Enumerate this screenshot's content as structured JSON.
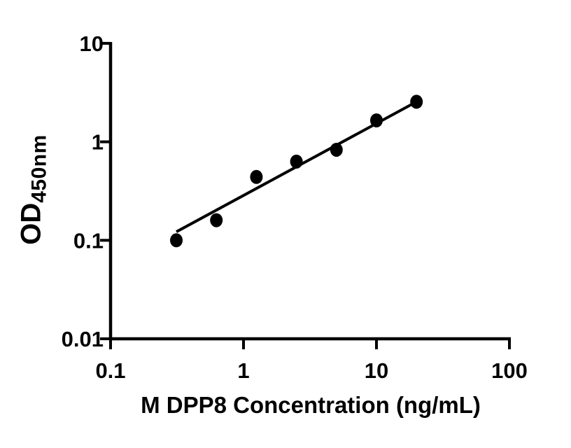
{
  "figure": {
    "background": "#ffffff",
    "ink_color": "#000000"
  },
  "chart_data": {
    "type": "scatter",
    "title": "",
    "xlabel": "M DPP8 Concentration (ng/mL)",
    "ylabel": "OD",
    "ylabel_subscript": "450nm",
    "x_scale": "log",
    "y_scale": "log",
    "xlim": [
      0.1,
      100
    ],
    "ylim": [
      0.01,
      10
    ],
    "x_ticks": [
      0.1,
      1,
      10,
      100
    ],
    "x_tick_labels": [
      "0.1",
      "1",
      "10",
      "100"
    ],
    "y_ticks": [
      0.01,
      0.1,
      1,
      10
    ],
    "y_tick_labels": [
      "0.01",
      "0.1",
      "1",
      "10"
    ],
    "grid": false,
    "legend": null,
    "series": [
      {
        "marker": "filled-circle",
        "color": "#000000",
        "x": [
          0.3125,
          0.625,
          1.25,
          2.5,
          5,
          10,
          20
        ],
        "y": [
          0.1,
          0.16,
          0.44,
          0.63,
          0.83,
          1.65,
          2.55
        ]
      }
    ],
    "fit_line": {
      "type": "straight-loglog",
      "x_start": 0.3125,
      "y_start": 0.122,
      "x_end": 20,
      "y_end": 2.55,
      "color": "#000000"
    }
  }
}
